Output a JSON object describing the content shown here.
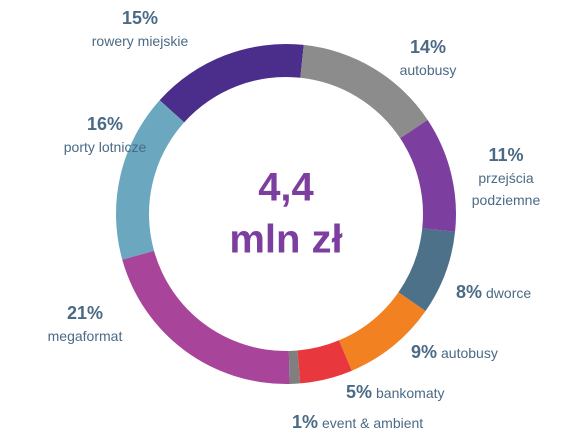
{
  "chart_data": {
    "type": "donut",
    "categories": [
      "autobusy",
      "przejścia podziemne",
      "dworce",
      "autobusy",
      "bankomaty",
      "event & ambient",
      "megaformat",
      "porty lotnicze",
      "rowery miejskie"
    ],
    "values": [
      14,
      11,
      8,
      9,
      5,
      1,
      21,
      16,
      15
    ],
    "value_labels": [
      "14%",
      "11%",
      "8%",
      "9%",
      "5%",
      "1%",
      "21%",
      "16%",
      "15%"
    ],
    "colors": [
      "#8c8c8c",
      "#7d3f9f",
      "#4d7189",
      "#f28121",
      "#e8383e",
      "#7f7f7f",
      "#a8459b",
      "#6ba8c0",
      "#4b2d8b"
    ],
    "center_value": "4,4",
    "center_unit": "mln zł"
  }
}
